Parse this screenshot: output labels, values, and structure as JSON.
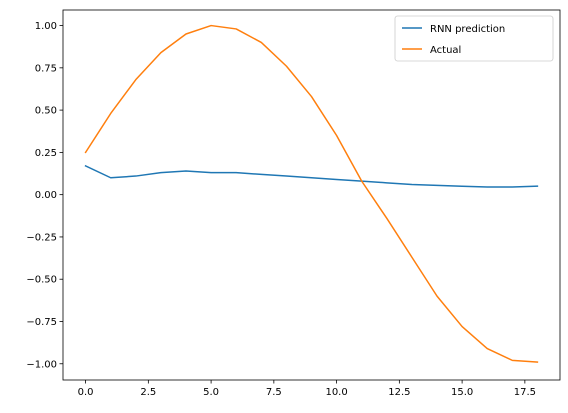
{
  "chart_data": {
    "type": "line",
    "title": "",
    "xlabel": "",
    "ylabel": "",
    "xlim": [
      -0.9,
      18.9
    ],
    "ylim": [
      -1.096,
      1.092
    ],
    "xticks": [
      0.0,
      2.5,
      5.0,
      7.5,
      10.0,
      12.5,
      15.0,
      17.5
    ],
    "xtick_labels": [
      "0.0",
      "2.5",
      "5.0",
      "7.5",
      "10.0",
      "12.5",
      "15.0",
      "17.5"
    ],
    "yticks": [
      -1.0,
      -0.75,
      -0.5,
      -0.25,
      0.0,
      0.25,
      0.5,
      0.75,
      1.0
    ],
    "ytick_labels": [
      "−1.00",
      "−0.75",
      "−0.50",
      "−0.25",
      "0.00",
      "0.25",
      "0.50",
      "0.75",
      "1.00"
    ],
    "grid": false,
    "legend_position": "top-right",
    "x": [
      0,
      1,
      2,
      3,
      4,
      5,
      6,
      7,
      8,
      9,
      10,
      11,
      12,
      13,
      14,
      15,
      16,
      17,
      18
    ],
    "series": [
      {
        "name": "RNN prediction",
        "color": "#1f77b4",
        "values": [
          0.17,
          0.1,
          0.11,
          0.13,
          0.14,
          0.13,
          0.13,
          0.12,
          0.11,
          0.1,
          0.09,
          0.08,
          0.07,
          0.06,
          0.055,
          0.05,
          0.045,
          0.045,
          0.05
        ]
      },
      {
        "name": "Actual",
        "color": "#ff7f0e",
        "values": [
          0.25,
          0.48,
          0.68,
          0.84,
          0.95,
          1.0,
          0.98,
          0.9,
          0.76,
          0.58,
          0.35,
          0.08,
          -0.14,
          -0.37,
          -0.6,
          -0.78,
          -0.91,
          -0.98,
          -0.99
        ]
      }
    ]
  }
}
